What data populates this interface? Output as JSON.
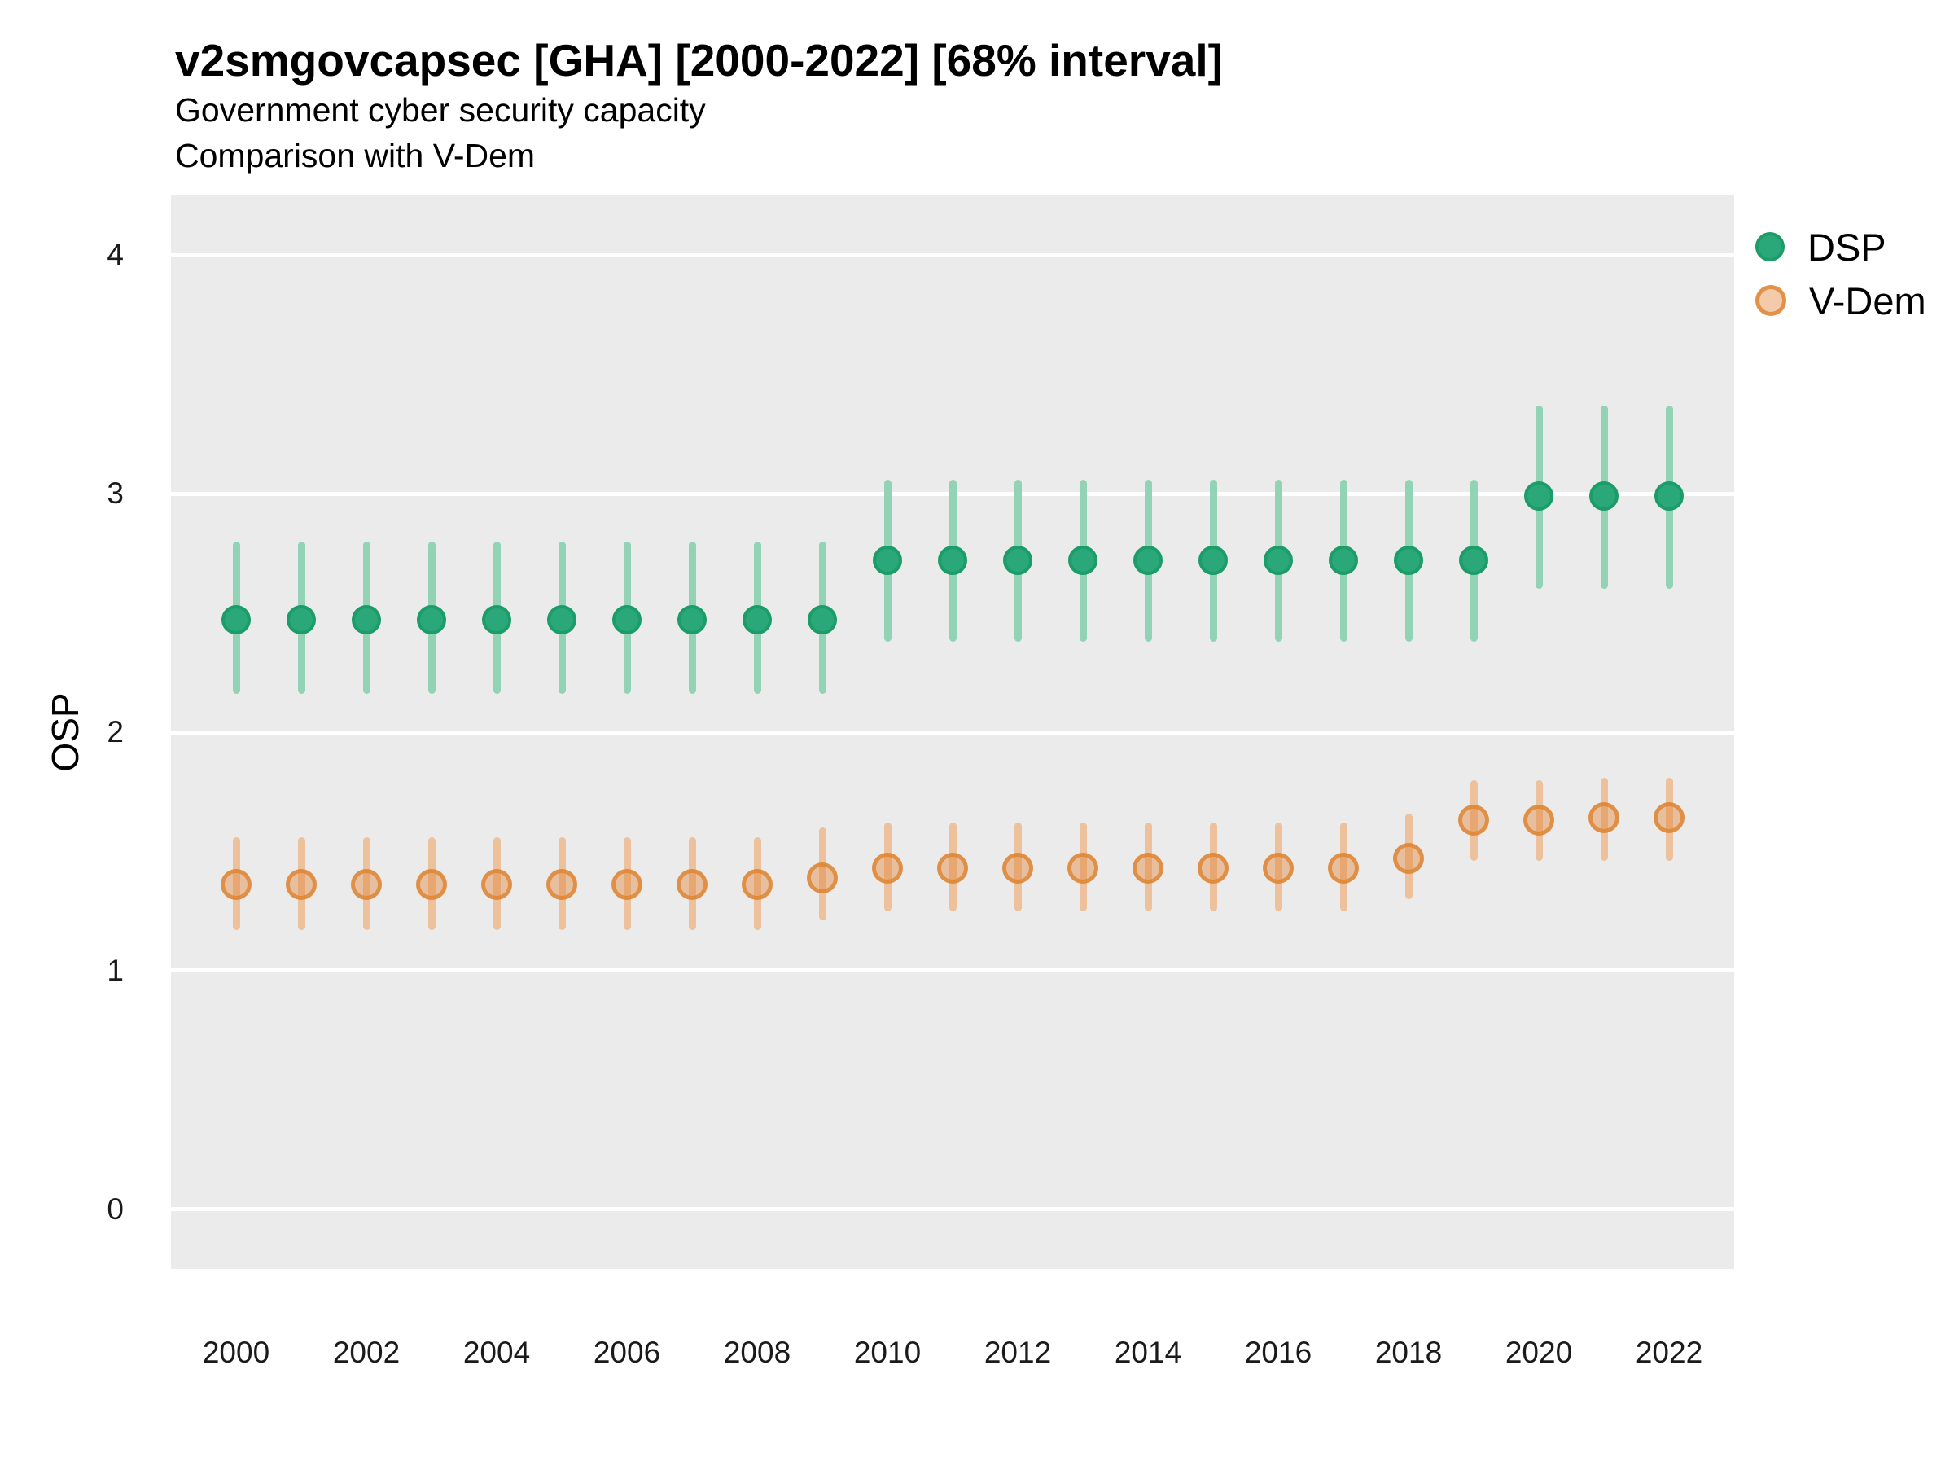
{
  "title": "v2smgovcapsec [GHA] [2000-2022] [68% interval]",
  "subtitle": "Government cyber security capacity",
  "subtitle2": "Comparison with V-Dem",
  "y_axis": {
    "label": "OSP",
    "ticks": [
      0,
      1,
      2,
      3,
      4
    ]
  },
  "x_axis": {
    "tick_years": [
      2000,
      2002,
      2004,
      2006,
      2008,
      2010,
      2012,
      2014,
      2016,
      2018,
      2020,
      2022
    ]
  },
  "legend": {
    "items": [
      {
        "label": "DSP"
      },
      {
        "label": "V-Dem"
      }
    ],
    "position": "right-top"
  },
  "colors": {
    "panel_background": "#EBEBEB",
    "gridline": "#FFFFFF",
    "dsp_point": "#2AA87A",
    "dsp_point_border": "#1C9C68",
    "dsp_interval": "#92D3B5",
    "vdem_point": "#EFAF81",
    "vdem_point_border": "#E0873F",
    "vdem_interval": "#ECC19B",
    "text": "#000000"
  },
  "chart_data": {
    "type": "scatter",
    "mark": "point-with-68pct-interval",
    "title": "v2smgovcapsec [GHA] [2000-2022] [68% interval]",
    "xlabel": "",
    "ylabel": "OSP",
    "ylim": [
      -0.25,
      4.25
    ],
    "xlim": [
      1999,
      2023
    ],
    "grid": "major-horizontal-only",
    "legend_position": "right",
    "x": [
      2000,
      2001,
      2002,
      2003,
      2004,
      2005,
      2006,
      2007,
      2008,
      2009,
      2010,
      2011,
      2012,
      2013,
      2014,
      2015,
      2016,
      2017,
      2018,
      2019,
      2020,
      2021,
      2022
    ],
    "series": [
      {
        "name": "DSP",
        "est": [
          2.47,
          2.47,
          2.47,
          2.47,
          2.47,
          2.47,
          2.47,
          2.47,
          2.47,
          2.47,
          2.72,
          2.72,
          2.72,
          2.72,
          2.72,
          2.72,
          2.72,
          2.72,
          2.72,
          2.72,
          2.99,
          2.99,
          2.99
        ],
        "lo": [
          2.16,
          2.16,
          2.16,
          2.16,
          2.16,
          2.16,
          2.16,
          2.16,
          2.16,
          2.16,
          2.38,
          2.38,
          2.38,
          2.38,
          2.38,
          2.38,
          2.38,
          2.38,
          2.38,
          2.38,
          2.6,
          2.6,
          2.6
        ],
        "hi": [
          2.8,
          2.8,
          2.8,
          2.8,
          2.8,
          2.8,
          2.8,
          2.8,
          2.8,
          2.8,
          3.06,
          3.06,
          3.06,
          3.06,
          3.06,
          3.06,
          3.06,
          3.06,
          3.06,
          3.06,
          3.37,
          3.37,
          3.37
        ]
      },
      {
        "name": "V-Dem",
        "est": [
          1.36,
          1.36,
          1.36,
          1.36,
          1.36,
          1.36,
          1.36,
          1.36,
          1.36,
          1.39,
          1.43,
          1.43,
          1.43,
          1.43,
          1.43,
          1.43,
          1.43,
          1.43,
          1.47,
          1.63,
          1.63,
          1.64,
          1.64
        ],
        "lo": [
          1.17,
          1.17,
          1.17,
          1.17,
          1.17,
          1.17,
          1.17,
          1.17,
          1.17,
          1.21,
          1.25,
          1.25,
          1.25,
          1.25,
          1.25,
          1.25,
          1.25,
          1.25,
          1.3,
          1.46,
          1.46,
          1.46,
          1.46
        ],
        "hi": [
          1.56,
          1.56,
          1.56,
          1.56,
          1.56,
          1.56,
          1.56,
          1.56,
          1.56,
          1.6,
          1.62,
          1.62,
          1.62,
          1.62,
          1.62,
          1.62,
          1.62,
          1.62,
          1.66,
          1.8,
          1.8,
          1.81,
          1.81
        ]
      }
    ]
  }
}
